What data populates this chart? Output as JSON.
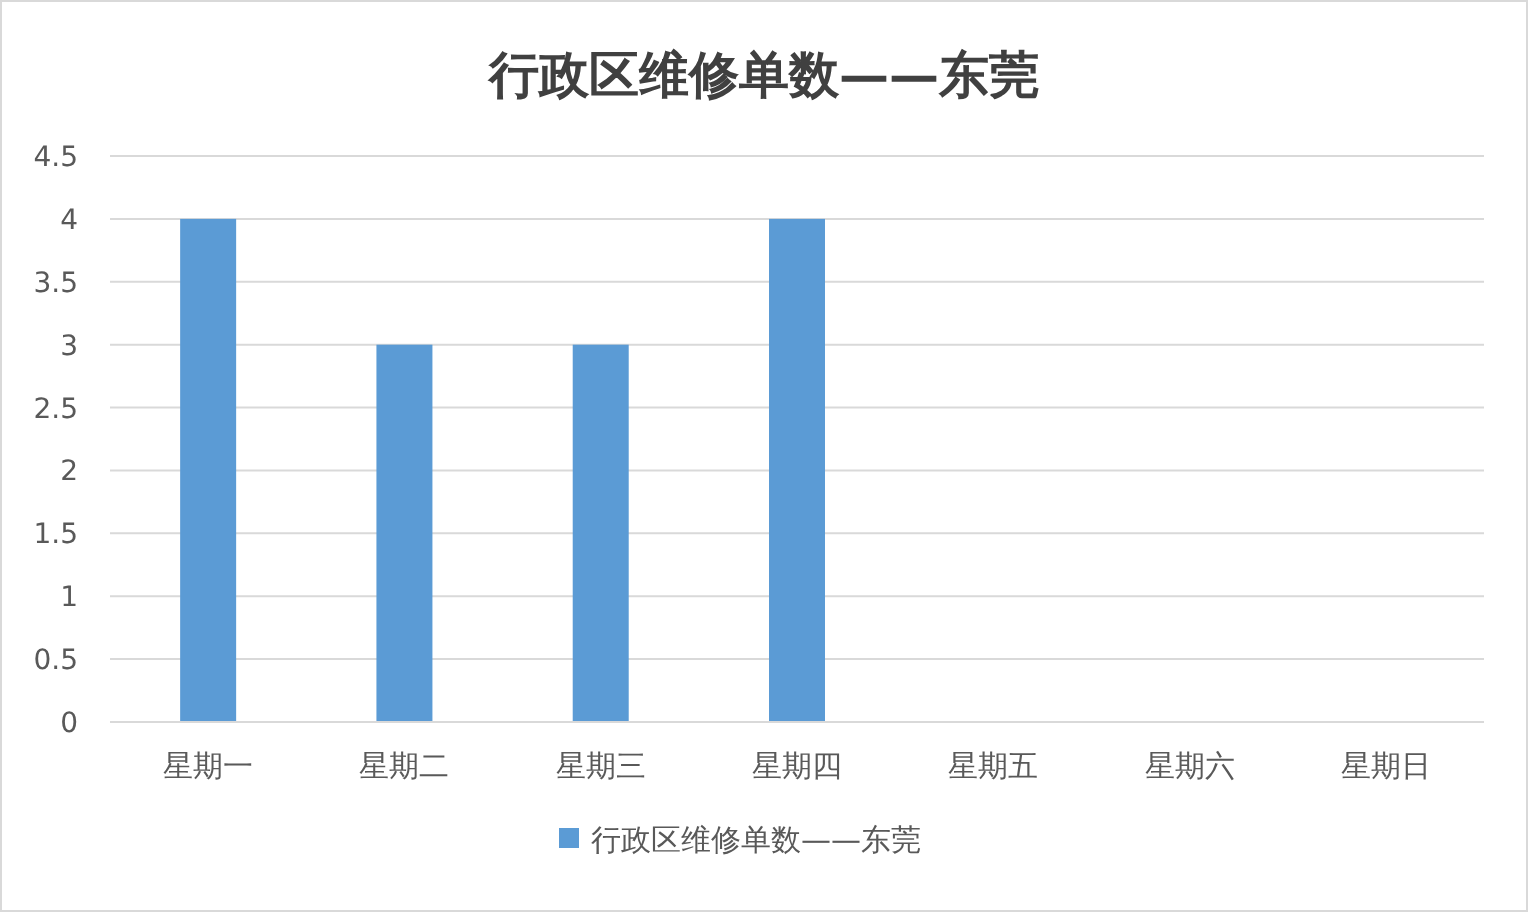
{
  "chart_data": {
    "type": "bar",
    "title": "行政区维修单数——东莞",
    "categories": [
      "星期一",
      "星期二",
      "星期三",
      "星期四",
      "星期五",
      "星期六",
      "星期日"
    ],
    "series": [
      {
        "name": "行政区维修单数——东莞",
        "color": "#5b9bd5",
        "values": [
          4,
          3,
          3,
          4,
          0,
          0,
          0
        ]
      }
    ],
    "ylim": [
      0,
      4.5
    ],
    "yticks": [
      0,
      0.5,
      1,
      1.5,
      2,
      2.5,
      3,
      3.5,
      4,
      4.5
    ],
    "grid": "y",
    "legend": "bottom"
  }
}
